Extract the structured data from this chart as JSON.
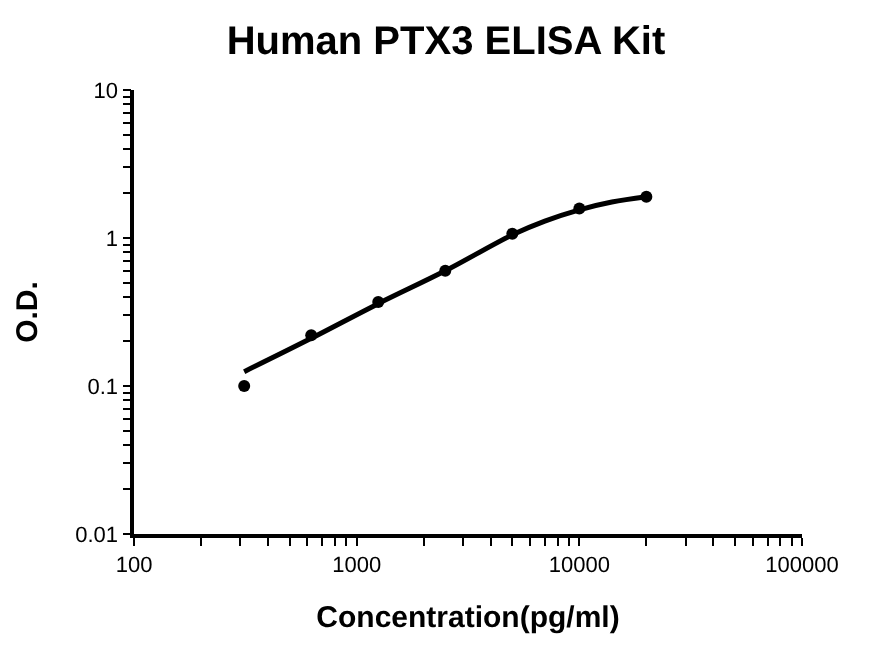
{
  "chart_data": {
    "type": "scatter",
    "title": "Human PTX3 ELISA Kit",
    "xlabel": "Concentration(pg/ml)",
    "ylabel": "O.D.",
    "log": "xy",
    "marker": "circle",
    "xlim": [
      100,
      100000
    ],
    "xticks": [
      100,
      {
        "value": 200,
        "label": null
      },
      {
        "value": 300,
        "label": null
      },
      {
        "value": 400,
        "label": null
      },
      {
        "value": 500,
        "label": null
      },
      {
        "value": 600,
        "label": null
      },
      {
        "value": 700,
        "label": null
      },
      {
        "value": 800,
        "label": null
      },
      {
        "value": 900,
        "label": null
      },
      1000,
      {
        "value": 2000,
        "label": null
      },
      {
        "value": 3000,
        "label": null
      },
      {
        "value": 4000,
        "label": null
      },
      {
        "value": 5000,
        "label": null
      },
      {
        "value": 6000,
        "label": null
      },
      {
        "value": 7000,
        "label": null
      },
      {
        "value": 8000,
        "label": null
      },
      {
        "value": 9000,
        "label": null
      },
      10000,
      {
        "value": 20000,
        "label": null
      },
      {
        "value": 30000,
        "label": null
      },
      {
        "value": 40000,
        "label": null
      },
      {
        "value": 50000,
        "label": null
      },
      {
        "value": 60000,
        "label": null
      },
      {
        "value": 70000,
        "label": null
      },
      {
        "value": 80000,
        "label": null
      },
      {
        "value": 90000,
        "label": null
      },
      100000
    ],
    "ylim": [
      0.01,
      10
    ],
    "yticks": [
      0.01,
      {
        "value": 0.02,
        "label": null
      },
      {
        "value": 0.03,
        "label": null
      },
      {
        "value": 0.04,
        "label": null
      },
      {
        "value": 0.05,
        "label": null
      },
      {
        "value": 0.06,
        "label": null
      },
      {
        "value": 0.07,
        "label": null
      },
      {
        "value": 0.08,
        "label": null
      },
      {
        "value": 0.09,
        "label": null
      },
      0.1,
      {
        "value": 0.2,
        "label": null
      },
      {
        "value": 0.3,
        "label": null
      },
      {
        "value": 0.4,
        "label": null
      },
      {
        "value": 0.5,
        "label": null
      },
      {
        "value": 0.6,
        "label": null
      },
      {
        "value": 0.7,
        "label": null
      },
      {
        "value": 0.8,
        "label": null
      },
      {
        "value": 0.9,
        "label": null
      },
      1,
      {
        "value": 2,
        "label": null
      },
      {
        "value": 3,
        "label": null
      },
      {
        "value": 4,
        "label": null
      },
      {
        "value": 5,
        "label": null
      },
      {
        "value": 6,
        "label": null
      },
      {
        "value": 7,
        "label": null
      },
      {
        "value": 8,
        "label": null
      },
      {
        "value": 9,
        "label": null
      },
      10
    ],
    "series": [
      {
        "color": "#000000",
        "x": [
          312.5,
          625,
          1250,
          2500,
          5000,
          10000,
          20000
        ],
        "values": [
          0.1,
          0.22,
          0.37,
          0.6,
          1.07,
          1.58,
          1.9
        ]
      },
      {
        "type": "line",
        "color": "#000000",
        "marker": "none",
        "line_style": "solid",
        "x": [
          312.5,
          625,
          1250,
          2500,
          5000,
          7000,
          10000,
          14000,
          20000
        ],
        "values": [
          0.125,
          0.21,
          0.36,
          0.6,
          1.05,
          1.3,
          1.55,
          1.75,
          1.9
        ]
      }
    ]
  }
}
